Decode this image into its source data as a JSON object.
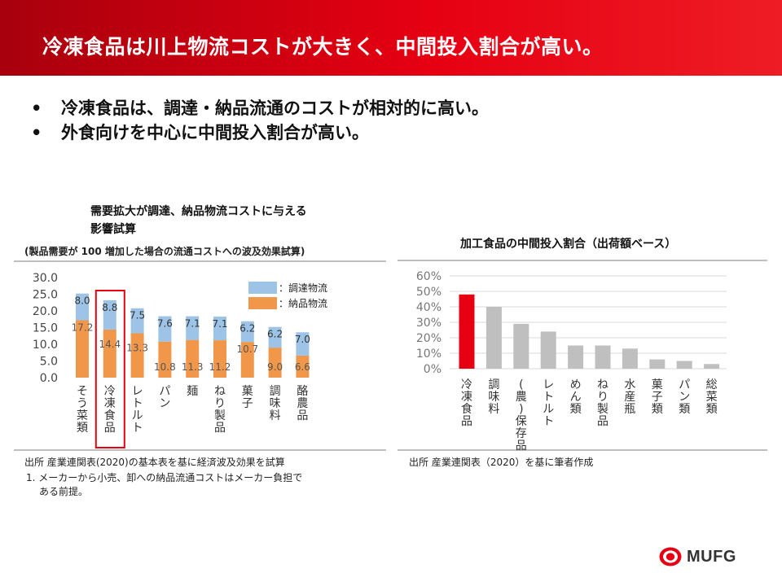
{
  "banner": {
    "title": "冷凍食品は川上物流コストが大きく、中間投入割合が高い。"
  },
  "bullets": [
    "冷凍食品は、調達・納品流通のコストが相対的に高い。",
    "外食向けを中心に中間投入割合が高い。"
  ],
  "bullet_marker": "•",
  "colors": {
    "banner_red": "#e60012",
    "procurement": "#9dc3e6",
    "delivery": "#f0974a",
    "highlight_bar": "#e60012",
    "gray_bar": "#bfbfbf"
  },
  "chart_data": [
    {
      "type": "bar",
      "stacked": true,
      "title_lines": [
        "需要拡大が調達、納品物流コストに与える",
        "影響試算"
      ],
      "subtitle": "(製品需要が 100 増加した場合の流通コストへの波及効果試算)",
      "categories": [
        "そう菜類",
        "冷凍食品",
        "レトルト",
        "パン",
        "麺",
        "ねり製品",
        "菓子",
        "調味料",
        "酪農品"
      ],
      "series": [
        {
          "name": "：納品物流",
          "values": [
            17.2,
            14.4,
            13.3,
            10.8,
            11.3,
            11.2,
            10.7,
            9.0,
            6.6
          ]
        },
        {
          "name": "：調達物流",
          "values": [
            8.0,
            8.8,
            7.5,
            7.6,
            7.1,
            7.1,
            6.2,
            6.2,
            7.0
          ]
        }
      ],
      "value_labels": {
        "delivery": [
          "17.2",
          "14.4",
          "13.3",
          "10.8",
          "11.3",
          "11.2",
          "10.7",
          "9.0",
          "6.6"
        ],
        "procurement": [
          "8.0",
          "8.8",
          "7.5",
          "7.6",
          "7.1",
          "7.1",
          "6.2",
          "6.2",
          "7.0"
        ]
      },
      "y_ticks": [
        "30.0",
        "25.0",
        "20.0",
        "15.0",
        "10.0",
        "5.0",
        "0.0"
      ],
      "ylim": [
        0,
        30
      ],
      "highlight_category": "冷凍食品",
      "legend_position": "top-right",
      "source": "出所  産業連関表(2020)の基本表を基に経済波及効果を試算",
      "note_line1": "1. メーカーから小売、卸への納品流通コストはメーカー負担で",
      "note_line2": "ある前提。"
    },
    {
      "type": "bar",
      "title": "加工食品の中間投入割合（出荷額ベース）",
      "categories": [
        "冷凍食品",
        "調味料",
        "(農)保存品",
        "レトルト",
        "めん類",
        "ねり製品",
        "水産瓶",
        "菓子類",
        "パン類",
        "総菜類"
      ],
      "values": [
        48,
        40,
        29,
        24,
        15,
        15,
        13,
        6,
        5,
        3
      ],
      "highlight_category": "冷凍食品",
      "y_ticks": [
        "60%",
        "50%",
        "40%",
        "30%",
        "20%",
        "10%",
        "0%"
      ],
      "ylim": [
        0,
        60
      ],
      "source": "出所  産業連関表（2020）を基に筆者作成"
    }
  ],
  "logo": {
    "text": "MUFG"
  }
}
